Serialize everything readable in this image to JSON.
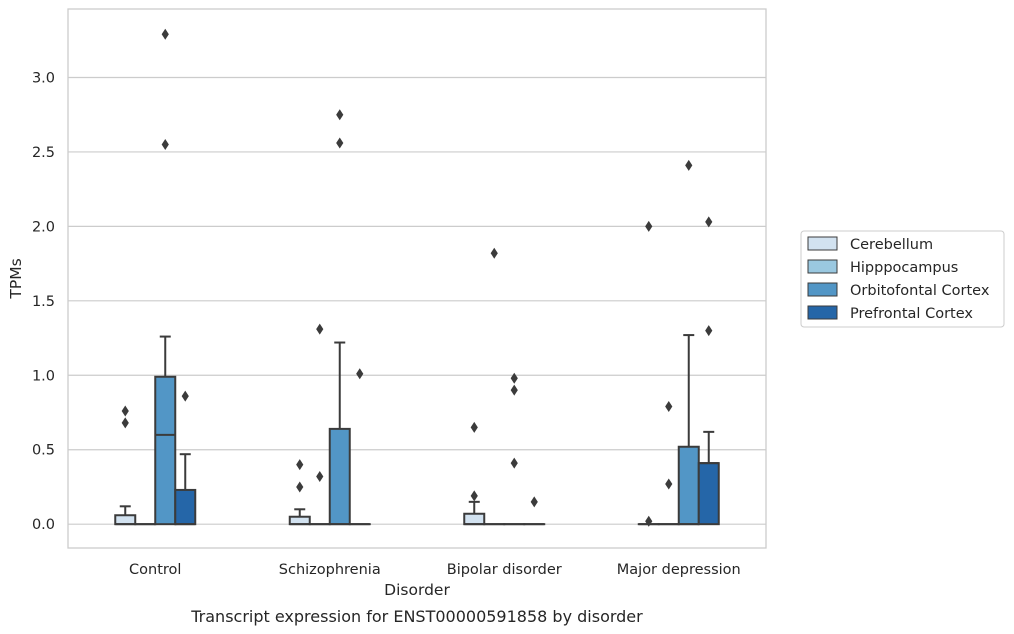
{
  "caption": "Transcript expression for ENST00000591858 by disorder",
  "chart_data": {
    "type": "box",
    "title": "",
    "xlabel": "Disorder",
    "ylabel": "TPMs",
    "ylim": [
      -0.16,
      3.46
    ],
    "yticks": [
      0.0,
      0.5,
      1.0,
      1.5,
      2.0,
      2.5,
      3.0
    ],
    "ytick_labels": [
      "0.0",
      "0.5",
      "1.0",
      "1.5",
      "2.0",
      "2.5",
      "3.0"
    ],
    "grid": "horizontal",
    "legend_position": "right",
    "categories": [
      "Control",
      "Schizophrenia",
      "Bipolar disorder",
      "Major depression"
    ],
    "series": [
      {
        "name": "Cerebellum",
        "color": "#d2e2f0",
        "boxes": [
          {
            "q1": 0.0,
            "median": 0.0,
            "q3": 0.06,
            "whisker_low": 0.0,
            "whisker_high": 0.12,
            "outliers": [
              0.68,
              0.76
            ]
          },
          {
            "q1": 0.0,
            "median": 0.0,
            "q3": 0.05,
            "whisker_low": 0.0,
            "whisker_high": 0.1,
            "outliers": [
              0.25,
              0.4
            ]
          },
          {
            "q1": 0.0,
            "median": 0.0,
            "q3": 0.07,
            "whisker_low": 0.0,
            "whisker_high": 0.15,
            "outliers": [
              0.19,
              0.65
            ]
          },
          {
            "q1": 0.0,
            "median": 0.0,
            "q3": 0.0,
            "whisker_low": 0.0,
            "whisker_high": 0.0,
            "outliers": [
              0.02,
              2.0
            ]
          }
        ]
      },
      {
        "name": "Hipppocampus",
        "color": "#9ac8e0",
        "boxes": [
          {
            "q1": 0.0,
            "median": 0.0,
            "q3": 0.0,
            "whisker_low": 0.0,
            "whisker_high": 0.0,
            "outliers": []
          },
          {
            "q1": 0.0,
            "median": 0.0,
            "q3": 0.0,
            "whisker_low": 0.0,
            "whisker_high": 0.0,
            "outliers": [
              0.32,
              1.31
            ]
          },
          {
            "q1": 0.0,
            "median": 0.0,
            "q3": 0.0,
            "whisker_low": 0.0,
            "whisker_high": 0.0,
            "outliers": [
              1.82
            ]
          },
          {
            "q1": 0.0,
            "median": 0.0,
            "q3": 0.0,
            "whisker_low": 0.0,
            "whisker_high": 0.0,
            "outliers": [
              0.27,
              0.79
            ]
          }
        ]
      },
      {
        "name": "Orbitofontal Cortex",
        "color": "#5296c6",
        "boxes": [
          {
            "q1": 0.0,
            "median": 0.6,
            "q3": 0.99,
            "whisker_low": 0.0,
            "whisker_high": 1.26,
            "outliers": [
              2.55,
              3.29
            ]
          },
          {
            "q1": 0.0,
            "median": 0.0,
            "q3": 0.64,
            "whisker_low": 0.0,
            "whisker_high": 1.22,
            "outliers": [
              2.56,
              2.75
            ]
          },
          {
            "q1": 0.0,
            "median": 0.0,
            "q3": 0.0,
            "whisker_low": 0.0,
            "whisker_high": 0.0,
            "outliers": [
              0.41,
              0.9,
              0.98
            ]
          },
          {
            "q1": 0.0,
            "median": 0.0,
            "q3": 0.52,
            "whisker_low": 0.0,
            "whisker_high": 1.27,
            "outliers": [
              2.41
            ]
          }
        ]
      },
      {
        "name": "Prefrontal Cortex",
        "color": "#2566a8",
        "boxes": [
          {
            "q1": 0.0,
            "median": 0.0,
            "q3": 0.23,
            "whisker_low": 0.0,
            "whisker_high": 0.47,
            "outliers": [
              0.86
            ]
          },
          {
            "q1": 0.0,
            "median": 0.0,
            "q3": 0.0,
            "whisker_low": 0.0,
            "whisker_high": 0.0,
            "outliers": [
              1.01
            ]
          },
          {
            "q1": 0.0,
            "median": 0.0,
            "q3": 0.0,
            "whisker_low": 0.0,
            "whisker_high": 0.0,
            "outliers": [
              0.15
            ]
          },
          {
            "q1": 0.0,
            "median": 0.41,
            "q3": 0.41,
            "whisker_low": 0.0,
            "whisker_high": 0.62,
            "outliers": [
              1.3,
              2.03
            ]
          }
        ]
      }
    ]
  }
}
